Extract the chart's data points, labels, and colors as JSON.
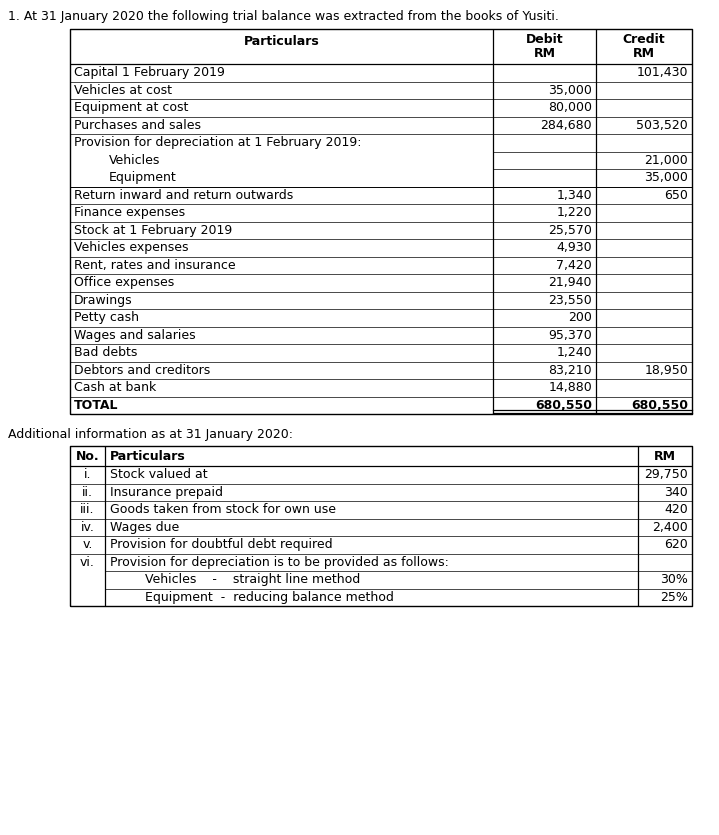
{
  "title": "1. At 31 January 2020 the following trial balance was extracted from the books of Yusiti.",
  "table1_rows": [
    {
      "particulars": "Capital 1 February 2019",
      "debit": "",
      "credit": "101,430",
      "indent": 0,
      "bold": false
    },
    {
      "particulars": "Vehicles at cost",
      "debit": "35,000",
      "credit": "",
      "indent": 0,
      "bold": false
    },
    {
      "particulars": "Equipment at cost",
      "debit": "80,000",
      "credit": "",
      "indent": 0,
      "bold": false
    },
    {
      "particulars": "Purchases and sales",
      "debit": "284,680",
      "credit": "503,520",
      "indent": 0,
      "bold": false
    },
    {
      "particulars": "Provision for depreciation at 1 February 2019:",
      "debit": "",
      "credit": "",
      "indent": 0,
      "bold": false,
      "multiline_top": true
    },
    {
      "particulars": "Vehicles",
      "debit": "",
      "credit": "21,000",
      "indent": 1,
      "bold": false,
      "sub": true
    },
    {
      "particulars": "Equipment",
      "debit": "",
      "credit": "35,000",
      "indent": 1,
      "bold": false,
      "sub": true,
      "multiline_bottom": true
    },
    {
      "particulars": "Return inward and return outwards",
      "debit": "1,340",
      "credit": "650",
      "indent": 0,
      "bold": false
    },
    {
      "particulars": "Finance expenses",
      "debit": "1,220",
      "credit": "",
      "indent": 0,
      "bold": false
    },
    {
      "particulars": "Stock at 1 February 2019",
      "debit": "25,570",
      "credit": "",
      "indent": 0,
      "bold": false
    },
    {
      "particulars": "Vehicles expenses",
      "debit": "4,930",
      "credit": "",
      "indent": 0,
      "bold": false
    },
    {
      "particulars": "Rent, rates and insurance",
      "debit": "7,420",
      "credit": "",
      "indent": 0,
      "bold": false
    },
    {
      "particulars": "Office expenses",
      "debit": "21,940",
      "credit": "",
      "indent": 0,
      "bold": false
    },
    {
      "particulars": "Drawings",
      "debit": "23,550",
      "credit": "",
      "indent": 0,
      "bold": false
    },
    {
      "particulars": "Petty cash",
      "debit": "200",
      "credit": "",
      "indent": 0,
      "bold": false
    },
    {
      "particulars": "Wages and salaries",
      "debit": "95,370",
      "credit": "",
      "indent": 0,
      "bold": false
    },
    {
      "particulars": "Bad debts",
      "debit": "1,240",
      "credit": "",
      "indent": 0,
      "bold": false
    },
    {
      "particulars": "Debtors and creditors",
      "debit": "83,210",
      "credit": "18,950",
      "indent": 0,
      "bold": false
    },
    {
      "particulars": "Cash at bank",
      "debit": "14,880",
      "credit": "",
      "indent": 0,
      "bold": false
    },
    {
      "particulars": "TOTAL",
      "debit": "680,550",
      "credit": "680,550",
      "indent": 0,
      "bold": true
    }
  ],
  "additional_title": "Additional information as at 31 January 2020:",
  "table2_rows": [
    {
      "no": "i.",
      "particulars": "Stock valued at",
      "rm": "29,750",
      "indent": 0
    },
    {
      "no": "ii.",
      "particulars": "Insurance prepaid",
      "rm": "340",
      "indent": 0
    },
    {
      "no": "iii.",
      "particulars": "Goods taken from stock for own use",
      "rm": "420",
      "indent": 0
    },
    {
      "no": "iv.",
      "particulars": "Wages due",
      "rm": "2,400",
      "indent": 0
    },
    {
      "no": "v.",
      "particulars": "Provision for doubtful debt required",
      "rm": "620",
      "indent": 0
    },
    {
      "no": "vi.",
      "particulars": "Provision for depreciation is to be provided as follows:",
      "rm": "",
      "indent": 0,
      "multiline_top": true
    },
    {
      "no": "",
      "particulars": "Vehicles    -    straight line method",
      "rm": "30%",
      "indent": 1,
      "sub": true
    },
    {
      "no": "",
      "particulars": "Equipment  -  reducing balance method",
      "rm": "25%",
      "indent": 1,
      "sub": true,
      "multiline_bottom": true
    }
  ],
  "bg_color": "#ffffff",
  "text_color": "#000000",
  "font_size": 9.0
}
